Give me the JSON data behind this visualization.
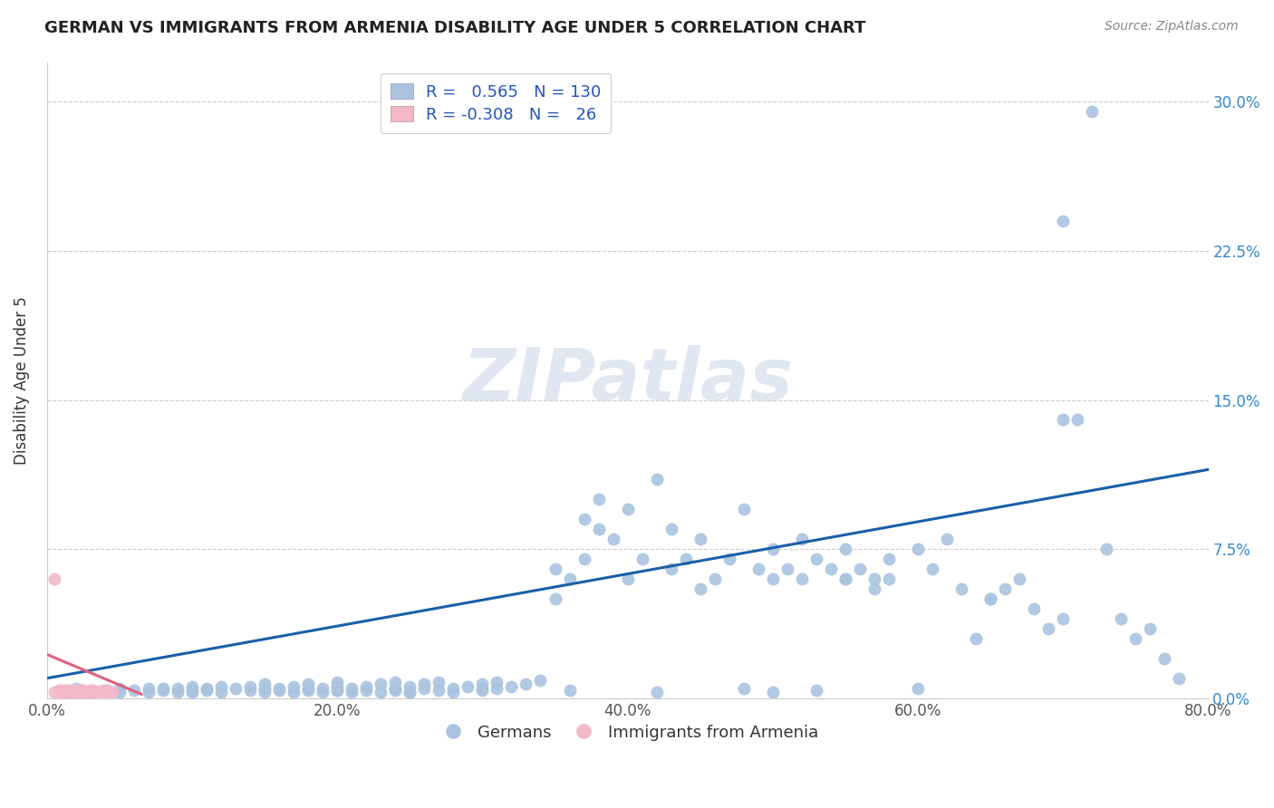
{
  "title": "GERMAN VS IMMIGRANTS FROM ARMENIA DISABILITY AGE UNDER 5 CORRELATION CHART",
  "source": "Source: ZipAtlas.com",
  "ylabel": "Disability Age Under 5",
  "watermark": "ZIPatlas",
  "xlim": [
    0.0,
    0.8
  ],
  "ylim": [
    0.0,
    0.32
  ],
  "xticks": [
    0.0,
    0.2,
    0.4,
    0.6,
    0.8
  ],
  "xtick_labels": [
    "0.0%",
    "20.0%",
    "40.0%",
    "60.0%",
    "80.0%"
  ],
  "ytick_labels_right": [
    "0.0%",
    "7.5%",
    "15.0%",
    "22.5%",
    "30.0%"
  ],
  "yticks_right": [
    0.0,
    0.075,
    0.15,
    0.225,
    0.3
  ],
  "blue_R": 0.565,
  "blue_N": 130,
  "pink_R": -0.308,
  "pink_N": 26,
  "blue_color": "#aac4e0",
  "pink_color": "#f4b8c8",
  "blue_line_color": "#1a5fa8",
  "pink_line_color": "#e06080",
  "blue_scatter_x": [
    0.02,
    0.03,
    0.04,
    0.05,
    0.05,
    0.06,
    0.07,
    0.07,
    0.08,
    0.08,
    0.09,
    0.09,
    0.1,
    0.1,
    0.1,
    0.11,
    0.11,
    0.12,
    0.12,
    0.13,
    0.14,
    0.14,
    0.15,
    0.15,
    0.15,
    0.16,
    0.16,
    0.17,
    0.17,
    0.18,
    0.18,
    0.18,
    0.19,
    0.19,
    0.2,
    0.2,
    0.2,
    0.21,
    0.21,
    0.22,
    0.22,
    0.23,
    0.23,
    0.24,
    0.24,
    0.24,
    0.25,
    0.25,
    0.26,
    0.26,
    0.27,
    0.27,
    0.28,
    0.28,
    0.29,
    0.3,
    0.3,
    0.31,
    0.31,
    0.32,
    0.33,
    0.34,
    0.35,
    0.35,
    0.36,
    0.37,
    0.37,
    0.38,
    0.38,
    0.39,
    0.4,
    0.4,
    0.41,
    0.42,
    0.43,
    0.43,
    0.44,
    0.45,
    0.45,
    0.46,
    0.47,
    0.48,
    0.49,
    0.5,
    0.5,
    0.51,
    0.52,
    0.52,
    0.53,
    0.54,
    0.55,
    0.55,
    0.56,
    0.57,
    0.58,
    0.58,
    0.6,
    0.61,
    0.62,
    0.63,
    0.64,
    0.65,
    0.66,
    0.67,
    0.68,
    0.69,
    0.7,
    0.7,
    0.71,
    0.72,
    0.73,
    0.74,
    0.75,
    0.76,
    0.77,
    0.78,
    0.55,
    0.57,
    0.65,
    0.7,
    0.6,
    0.5,
    0.53,
    0.48,
    0.42,
    0.36,
    0.3,
    0.25,
    0.2,
    0.15
  ],
  "blue_scatter_y": [
    0.005,
    0.003,
    0.004,
    0.005,
    0.003,
    0.004,
    0.005,
    0.003,
    0.004,
    0.005,
    0.003,
    0.005,
    0.004,
    0.006,
    0.003,
    0.005,
    0.004,
    0.006,
    0.003,
    0.005,
    0.004,
    0.006,
    0.005,
    0.003,
    0.007,
    0.005,
    0.004,
    0.006,
    0.003,
    0.005,
    0.004,
    0.007,
    0.005,
    0.003,
    0.006,
    0.004,
    0.008,
    0.005,
    0.003,
    0.006,
    0.004,
    0.007,
    0.003,
    0.005,
    0.008,
    0.004,
    0.006,
    0.003,
    0.007,
    0.005,
    0.004,
    0.008,
    0.005,
    0.003,
    0.006,
    0.007,
    0.004,
    0.008,
    0.005,
    0.006,
    0.007,
    0.009,
    0.065,
    0.05,
    0.06,
    0.07,
    0.09,
    0.085,
    0.1,
    0.08,
    0.095,
    0.06,
    0.07,
    0.11,
    0.085,
    0.065,
    0.07,
    0.08,
    0.055,
    0.06,
    0.07,
    0.095,
    0.065,
    0.06,
    0.075,
    0.065,
    0.08,
    0.06,
    0.07,
    0.065,
    0.075,
    0.06,
    0.065,
    0.055,
    0.07,
    0.06,
    0.075,
    0.065,
    0.08,
    0.055,
    0.03,
    0.05,
    0.055,
    0.06,
    0.045,
    0.035,
    0.14,
    0.24,
    0.14,
    0.295,
    0.075,
    0.04,
    0.03,
    0.035,
    0.02,
    0.01,
    0.06,
    0.06,
    0.05,
    0.04,
    0.005,
    0.003,
    0.004,
    0.005,
    0.003,
    0.004,
    0.005,
    0.003,
    0.004,
    0.005
  ],
  "pink_scatter_x": [
    0.005,
    0.008,
    0.01,
    0.01,
    0.012,
    0.013,
    0.015,
    0.015,
    0.016,
    0.018,
    0.02,
    0.02,
    0.022,
    0.023,
    0.025,
    0.025,
    0.028,
    0.03,
    0.03,
    0.032,
    0.035,
    0.038,
    0.04,
    0.042,
    0.045,
    0.005
  ],
  "pink_scatter_y": [
    0.003,
    0.004,
    0.003,
    0.004,
    0.003,
    0.004,
    0.003,
    0.004,
    0.003,
    0.004,
    0.003,
    0.004,
    0.003,
    0.004,
    0.003,
    0.004,
    0.003,
    0.004,
    0.003,
    0.004,
    0.003,
    0.004,
    0.003,
    0.004,
    0.003,
    0.06
  ],
  "blue_trendline_x": [
    0.0,
    0.8
  ],
  "blue_trendline_y": [
    0.01,
    0.115
  ],
  "pink_trendline_x": [
    0.0,
    0.065
  ],
  "pink_trendline_y": [
    0.022,
    0.002
  ]
}
